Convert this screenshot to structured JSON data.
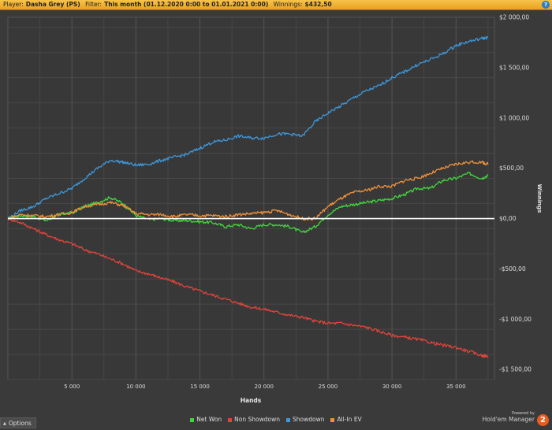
{
  "header": {
    "player_label": "Player:",
    "player_value": "Dasha Grey (PS)",
    "filter_label": "Filter:",
    "filter_value": "This month (01.12.2020 0:00 to 01.01.2021 0:00)",
    "winnings_label": "Winnings:",
    "winnings_value": "$432,50",
    "help_icon": "?"
  },
  "footer": {
    "options_label": "Options",
    "powered_by": "Powered by",
    "brand_name": "Hold'em Manager",
    "brand_logo": "2"
  },
  "chart_data": {
    "type": "line",
    "xlabel": "Hands",
    "ylabel": "Winnings",
    "xlim": [
      0,
      38000
    ],
    "ylim": [
      -1600,
      2000
    ],
    "x_ticks": [
      5000,
      10000,
      15000,
      20000,
      25000,
      30000,
      35000
    ],
    "x_tick_labels": [
      "5 000",
      "10 000",
      "15 000",
      "20 000",
      "25 000",
      "30 000",
      "35 000"
    ],
    "y_ticks": [
      2000,
      1500,
      1000,
      500,
      0,
      -500,
      -1000,
      -1500
    ],
    "y_tick_labels": [
      "$2 000,00",
      "$1 500,00",
      "$1 000,00",
      "$500,00",
      "$0,00",
      "-$500,00",
      "-$1 000,00",
      "-$1 500,00"
    ],
    "grid": true,
    "legend_position": "bottom",
    "background": "#3a3a3a",
    "zero_line_color": "#ffffff",
    "series": [
      {
        "name": "Net Won",
        "color": "#3fd83a",
        "x": [
          0,
          1000,
          2000,
          3000,
          4000,
          5000,
          6000,
          7000,
          8000,
          9000,
          10000,
          11000,
          12000,
          13000,
          14000,
          15000,
          16000,
          17000,
          18000,
          19000,
          20000,
          21000,
          22000,
          23000,
          24000,
          25000,
          26000,
          27000,
          28000,
          29000,
          30000,
          31000,
          32000,
          33000,
          34000,
          35000,
          36000,
          37000,
          37500
        ],
        "values": [
          0,
          30,
          20,
          -20,
          40,
          60,
          120,
          160,
          210,
          150,
          30,
          -10,
          0,
          -20,
          -20,
          -30,
          -40,
          -80,
          -60,
          -100,
          -60,
          -60,
          -80,
          -140,
          -80,
          40,
          120,
          140,
          160,
          180,
          200,
          240,
          300,
          300,
          380,
          400,
          450,
          400,
          430
        ]
      },
      {
        "name": "Non Showdown",
        "color": "#e0443a",
        "x": [
          0,
          1000,
          2000,
          3000,
          4000,
          5000,
          6000,
          7000,
          8000,
          9000,
          10000,
          11000,
          12000,
          13000,
          14000,
          15000,
          16000,
          17000,
          18000,
          19000,
          20000,
          21000,
          22000,
          23000,
          24000,
          25000,
          26000,
          27000,
          28000,
          29000,
          30000,
          31000,
          32000,
          33000,
          34000,
          35000,
          36000,
          37000,
          37500
        ],
        "values": [
          0,
          -40,
          -100,
          -160,
          -210,
          -250,
          -310,
          -350,
          -400,
          -450,
          -520,
          -550,
          -590,
          -630,
          -680,
          -720,
          -760,
          -800,
          -840,
          -880,
          -900,
          -930,
          -960,
          -980,
          -1020,
          -1040,
          -1040,
          -1060,
          -1080,
          -1120,
          -1160,
          -1180,
          -1200,
          -1230,
          -1260,
          -1280,
          -1320,
          -1360,
          -1370
        ]
      },
      {
        "name": "Showdown",
        "color": "#3d98dc",
        "x": [
          0,
          1000,
          2000,
          3000,
          4000,
          5000,
          6000,
          7000,
          8000,
          9000,
          10000,
          11000,
          12000,
          13000,
          14000,
          15000,
          16000,
          17000,
          18000,
          19000,
          20000,
          21000,
          22000,
          23000,
          24000,
          25000,
          26000,
          27000,
          28000,
          29000,
          30000,
          31000,
          32000,
          33000,
          34000,
          35000,
          36000,
          37000,
          37500
        ],
        "values": [
          0,
          80,
          120,
          200,
          250,
          300,
          400,
          500,
          580,
          560,
          530,
          540,
          580,
          610,
          640,
          700,
          760,
          780,
          820,
          800,
          800,
          840,
          840,
          820,
          960,
          1050,
          1120,
          1200,
          1270,
          1320,
          1400,
          1460,
          1530,
          1580,
          1640,
          1720,
          1760,
          1790,
          1800
        ]
      },
      {
        "name": "All-In EV",
        "color": "#f0923a",
        "x": [
          0,
          1000,
          2000,
          3000,
          4000,
          5000,
          6000,
          7000,
          8000,
          9000,
          10000,
          11000,
          12000,
          13000,
          14000,
          15000,
          16000,
          17000,
          18000,
          19000,
          20000,
          21000,
          22000,
          23000,
          24000,
          25000,
          26000,
          27000,
          28000,
          29000,
          30000,
          31000,
          32000,
          33000,
          34000,
          35000,
          36000,
          37000,
          37500
        ],
        "values": [
          0,
          40,
          30,
          20,
          40,
          60,
          120,
          140,
          160,
          130,
          50,
          40,
          40,
          20,
          40,
          30,
          30,
          20,
          40,
          50,
          60,
          80,
          40,
          0,
          0,
          120,
          200,
          260,
          280,
          320,
          320,
          380,
          400,
          450,
          500,
          540,
          560,
          560,
          540
        ]
      }
    ]
  }
}
